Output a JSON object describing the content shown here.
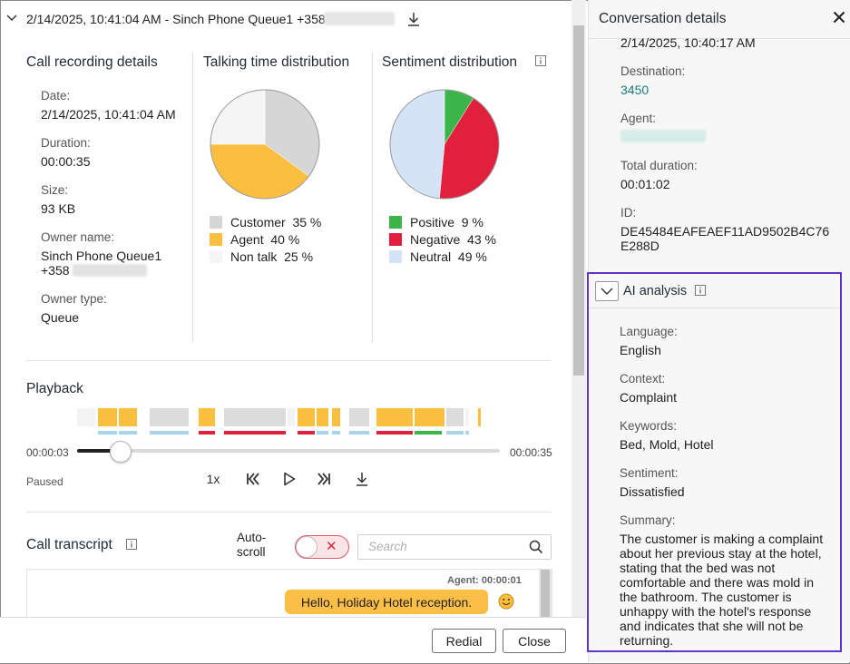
{
  "header": {
    "title": "2/14/2025, 10:41:04 AM - Sinch Phone Queue1 +358"
  },
  "details": {
    "title": "Call recording details",
    "date_label": "Date:",
    "date": "2/14/2025, 10:41:04 AM",
    "duration_label": "Duration:",
    "duration": "00:00:35",
    "size_label": "Size:",
    "size": "93 KB",
    "owner_label": "Owner name:",
    "owner_line1": "Sinch Phone Queue1",
    "owner_line2": "+358",
    "owner_type_label": "Owner type:",
    "owner_type": "Queue"
  },
  "talking": {
    "title": "Talking time distribution",
    "legend": [
      {
        "label": "Customer",
        "pct": "35 %",
        "color": "#d6d6d6"
      },
      {
        "label": "Agent",
        "pct": "40 %",
        "color": "#fbbf3f"
      },
      {
        "label": "Non talk",
        "pct": "25 %",
        "color": "#f5f5f5"
      }
    ]
  },
  "sentiment": {
    "title": "Sentiment distribution",
    "legend": [
      {
        "label": "Positive",
        "pct": "9 %",
        "color": "#3bb54a"
      },
      {
        "label": "Negative",
        "pct": "43 %",
        "color": "#e0203c"
      },
      {
        "label": "Neutral",
        "pct": "49 %",
        "color": "#d4e3f5"
      }
    ]
  },
  "playback": {
    "title": "Playback",
    "current_time": "00:00:03",
    "total_time": "00:00:35",
    "progress": 0.1,
    "status": "Paused",
    "speed": "1x"
  },
  "transcript": {
    "title": "Call transcript",
    "autoscroll_line1": "Auto-",
    "autoscroll_line2": "scroll",
    "search_placeholder": "Search",
    "agent_meta": "Agent: 00:00:01",
    "message": "Hello, Holiday Hotel reception."
  },
  "footer": {
    "redial": "Redial",
    "close": "Close"
  },
  "conversation": {
    "title": "Conversation details",
    "start_time": "2/14/2025, 10:40:17 AM",
    "destination_label": "Destination:",
    "destination": "3450",
    "agent_label": "Agent:",
    "total_label": "Total duration:",
    "total": "00:01:02",
    "id_label": "ID:",
    "id_line1": "DE45484EAFEAEF11AD9502B4C76",
    "id_line2": "E288D"
  },
  "ai": {
    "title": "AI analysis",
    "language_label": "Language:",
    "language": "English",
    "context_label": "Context:",
    "context": "Complaint",
    "keywords_label": "Keywords:",
    "keywords": "Bed, Mold, Hotel",
    "sentiment_label": "Sentiment:",
    "sentiment": "Dissatisfied",
    "summary_label": "Summary:",
    "summary_lines": [
      "The customer is making a complaint",
      "about her previous stay at the hotel,",
      "stating that the bed was not",
      "comfortable and there was mold in",
      "the bathroom. The customer is",
      "unhappy with the hotel's response",
      "and indicates that she will not be",
      "returning."
    ]
  },
  "colors": {
    "accent": "#5e35c8",
    "agent": "#fbbf3f",
    "negative": "#e0203c",
    "positive": "#3bb54a",
    "neutral": "#d4e3f5",
    "link": "#1a7a7a"
  },
  "icons": [
    "chevron-down-icon",
    "download-icon",
    "info-icon",
    "rewind-icon",
    "play-icon",
    "forward-icon",
    "search-icon",
    "close-icon",
    "smiley-icon"
  ]
}
